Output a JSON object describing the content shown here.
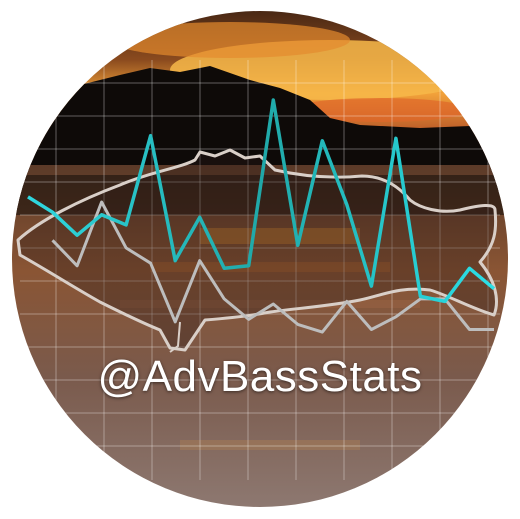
{
  "logo": {
    "handle": "@AdvBassStats",
    "icon": "bass-fish-stats-logo",
    "colors": {
      "sky_top": "#4a2a16",
      "sunset": "#f2a23a",
      "treeline": "#0e0a08",
      "water": "#6b4a3a",
      "cyan_line": "#2be0e8",
      "gray_line": "#8c8c8c",
      "white_line": "#ffffff",
      "fish_outline": "#d9cfc8"
    }
  },
  "chart_data": {
    "type": "line",
    "title": "",
    "xlabel": "",
    "ylabel": "",
    "grid": true,
    "x": [
      0,
      1,
      2,
      3,
      4,
      5,
      6,
      7,
      8,
      9,
      10,
      11,
      12,
      13,
      14,
      15,
      16,
      17,
      18,
      19
    ],
    "series": [
      {
        "values": [
          6.2,
          5.6,
          4.7,
          5.5,
          5.1,
          8.6,
          3.7,
          5.4,
          3.4,
          3.5,
          10.0,
          4.3,
          8.4,
          5.9,
          2.7,
          8.5,
          2.3,
          2.1,
          3.4,
          2.6
        ]
      },
      {
        "values": [
          null,
          4.5,
          3.5,
          6.0,
          4.2,
          3.6,
          1.3,
          3.7,
          2.2,
          1.4,
          2.0,
          1.2,
          0.9,
          2.1,
          1.0,
          1.5,
          2.2,
          2.2,
          1.0,
          1.0
        ]
      }
    ]
  }
}
